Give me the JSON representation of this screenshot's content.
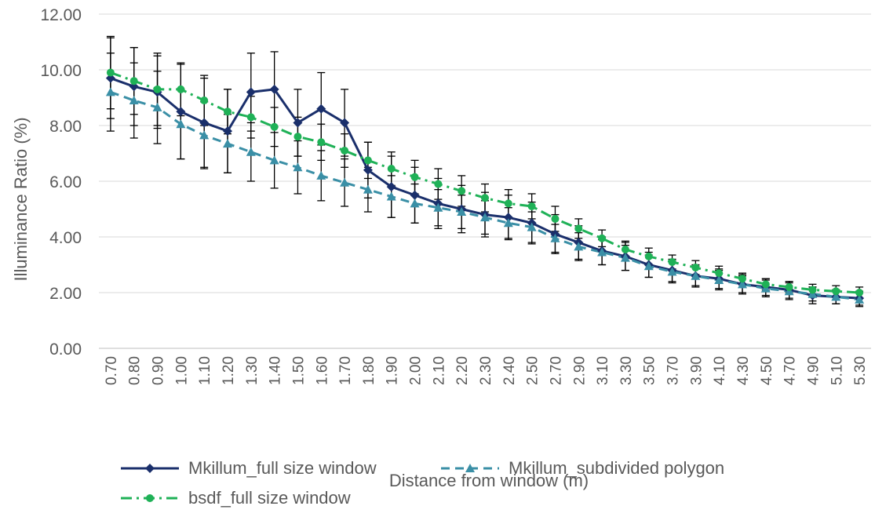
{
  "chart_data": {
    "type": "line",
    "title": "",
    "xlabel": "Distance from window (m)",
    "ylabel": "Illuminance Ratio (%)",
    "ylim": [
      0,
      12
    ],
    "ytick_labels": [
      "0.00",
      "2.00",
      "4.00",
      "6.00",
      "8.00",
      "10.00",
      "12.00"
    ],
    "grid": true,
    "legend_position": "bottom",
    "categories": [
      "0.70",
      "0.80",
      "0.90",
      "1.00",
      "1.10",
      "1.20",
      "1.30",
      "1.40",
      "1.50",
      "1.60",
      "1.70",
      "1.80",
      "1.90",
      "2.00",
      "2.10",
      "2.20",
      "2.30",
      "2.40",
      "2.50",
      "2.70",
      "2.90",
      "3.10",
      "3.30",
      "3.50",
      "3.70",
      "3.90",
      "4.10",
      "4.30",
      "4.50",
      "4.70",
      "4.90",
      "5.10",
      "5.30"
    ],
    "series": [
      {
        "name": "Mkillum_full size window",
        "color": "#1a2f6b",
        "line": "solid",
        "marker": "diamond",
        "values": [
          9.7,
          9.4,
          9.2,
          8.5,
          8.1,
          7.8,
          9.2,
          9.3,
          8.1,
          8.6,
          8.1,
          6.4,
          5.8,
          5.5,
          5.2,
          5.0,
          4.8,
          4.7,
          4.5,
          4.1,
          3.8,
          3.5,
          3.3,
          3.0,
          2.8,
          2.6,
          2.5,
          2.3,
          2.2,
          2.1,
          1.9,
          1.85,
          1.8
        ],
        "error": [
          1.45,
          1.4,
          1.3,
          1.7,
          1.6,
          1.5,
          1.4,
          1.35,
          1.2,
          1.3,
          1.2,
          1.0,
          1.1,
          1.0,
          0.9,
          0.85,
          0.8,
          0.8,
          0.75,
          0.7,
          0.6,
          0.5,
          0.5,
          0.45,
          0.4,
          0.4,
          0.35,
          0.35,
          0.3,
          0.3,
          0.3,
          0.25,
          0.25
        ]
      },
      {
        "name": "Mkillum_subdivided polygon",
        "color": "#3a8fa6",
        "line": "dashed",
        "marker": "triangle",
        "values": [
          9.2,
          8.9,
          8.65,
          8.05,
          7.65,
          7.35,
          7.05,
          6.75,
          6.5,
          6.2,
          5.95,
          5.7,
          5.45,
          5.2,
          5.05,
          4.9,
          4.7,
          4.5,
          4.35,
          3.95,
          3.65,
          3.45,
          3.25,
          2.95,
          2.75,
          2.6,
          2.45,
          2.3,
          2.15,
          2.05,
          1.95,
          1.85,
          1.75
        ],
        "error": [
          1.4,
          1.35,
          1.3,
          1.25,
          1.2,
          1.05,
          1.05,
          1.0,
          0.95,
          0.9,
          0.85,
          0.8,
          0.75,
          0.7,
          0.65,
          0.6,
          0.6,
          0.55,
          0.55,
          0.5,
          0.5,
          0.45,
          0.45,
          0.4,
          0.4,
          0.35,
          0.35,
          0.3,
          0.3,
          0.3,
          0.25,
          0.25,
          0.25
        ]
      },
      {
        "name": "bsdf_full size window",
        "color": "#1fb157",
        "line": "dashdot",
        "marker": "circle",
        "values": [
          9.9,
          9.6,
          9.3,
          9.3,
          8.9,
          8.5,
          8.3,
          7.95,
          7.6,
          7.4,
          7.1,
          6.75,
          6.45,
          6.15,
          5.9,
          5.65,
          5.4,
          5.2,
          5.1,
          4.65,
          4.3,
          3.95,
          3.55,
          3.3,
          3.1,
          2.9,
          2.7,
          2.5,
          2.3,
          2.2,
          2.1,
          2.05,
          2.0
        ],
        "error": [
          1.3,
          1.2,
          1.3,
          0.95,
          0.9,
          0.8,
          0.75,
          0.7,
          0.7,
          0.65,
          0.6,
          0.65,
          0.6,
          0.6,
          0.55,
          0.55,
          0.5,
          0.5,
          0.45,
          0.45,
          0.35,
          0.3,
          0.3,
          0.3,
          0.25,
          0.25,
          0.25,
          0.2,
          0.2,
          0.2,
          0.2,
          0.2,
          0.2
        ]
      }
    ]
  }
}
